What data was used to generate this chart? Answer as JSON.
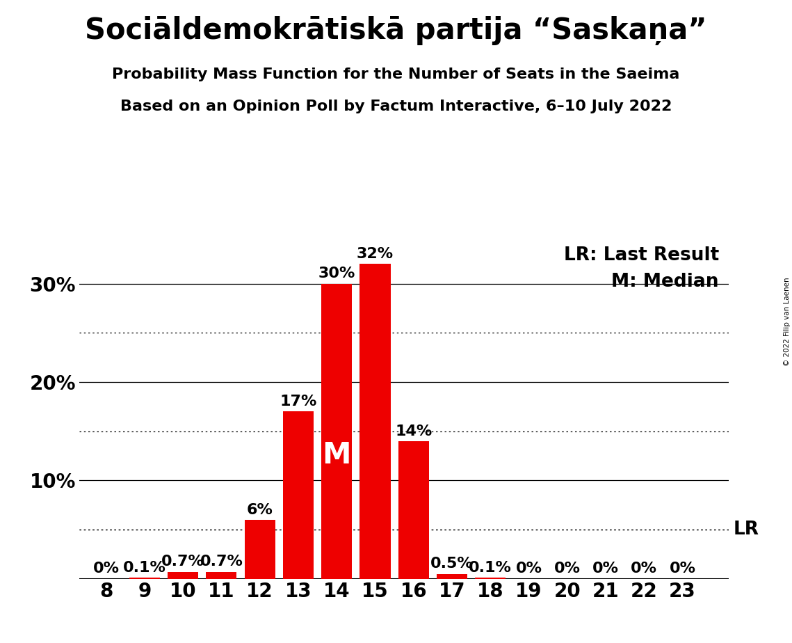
{
  "title": "Sociāldemokrātiskā partija “Saskaņa”",
  "subtitle1": "Probability Mass Function for the Number of Seats in the Saeima",
  "subtitle2": "Based on an Opinion Poll by Factum Interactive, 6–10 July 2022",
  "copyright": "© 2022 Filip van Laenen",
  "legend_lr": "LR: Last Result",
  "legend_m": "M: Median",
  "seats": [
    8,
    9,
    10,
    11,
    12,
    13,
    14,
    15,
    16,
    17,
    18,
    19,
    20,
    21,
    22,
    23
  ],
  "probabilities": [
    0.0,
    0.1,
    0.7,
    0.7,
    6.0,
    17.0,
    30.0,
    32.0,
    14.0,
    0.5,
    0.1,
    0.0,
    0.0,
    0.0,
    0.0,
    0.0
  ],
  "bar_color": "#EE0000",
  "median_seat": 14,
  "lr_value": 5.0,
  "background_color": "#FFFFFF",
  "ylim": [
    0,
    34
  ],
  "solid_gridlines": [
    10,
    20,
    30
  ],
  "dotted_gridlines": [
    5,
    15,
    25
  ],
  "title_fontsize": 30,
  "subtitle_fontsize": 16,
  "tick_fontsize": 20,
  "annotation_fontsize": 16,
  "legend_fontsize": 19,
  "median_label_fontsize": 30
}
